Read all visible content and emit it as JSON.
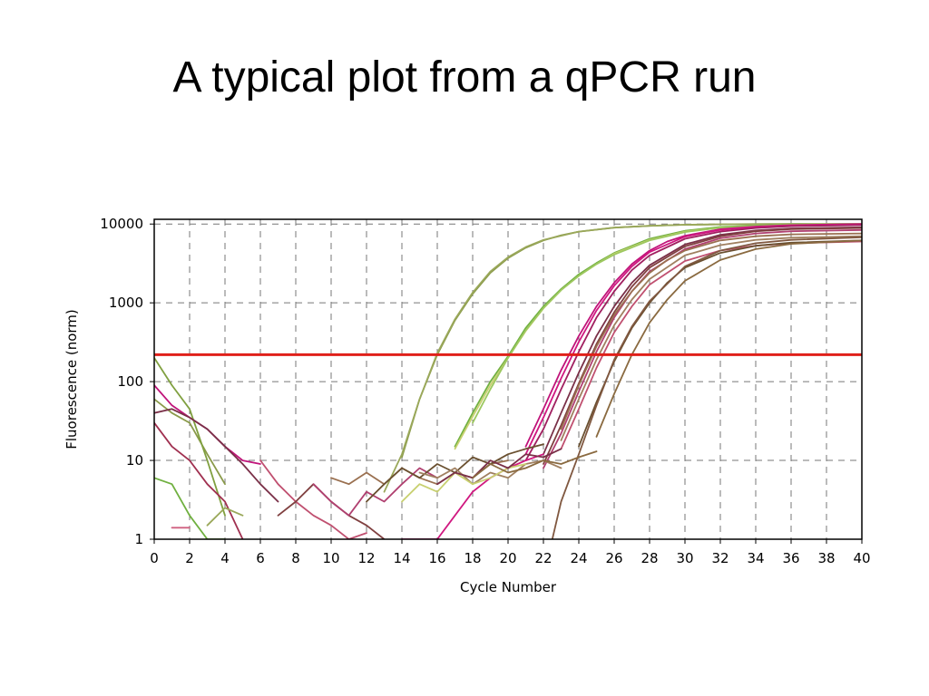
{
  "slide": {
    "title": "A typical plot from a qPCR run"
  },
  "chart_data": {
    "type": "line",
    "xlabel": "Cycle Number",
    "ylabel": "Fluorescence (norm)",
    "xlim": [
      0,
      40
    ],
    "ylim": [
      1,
      10000
    ],
    "y_scale": "log",
    "grid": true,
    "grid_style": "dashed",
    "x_ticks": [
      "0",
      "2",
      "4",
      "6",
      "8",
      "10",
      "12",
      "14",
      "16",
      "18",
      "20",
      "22",
      "24",
      "26",
      "28",
      "30",
      "32",
      "34",
      "36",
      "38",
      "40"
    ],
    "y_ticks": [
      "1",
      "10",
      "100",
      "1000",
      "10000"
    ],
    "threshold": 220,
    "threshold_color": "#e0201a",
    "series": [
      {
        "color": "#8a9a4a",
        "x": [
          14,
          15,
          16,
          17,
          18,
          19,
          20,
          21,
          22,
          23,
          24,
          26,
          28,
          30,
          32,
          36,
          40
        ],
        "y": [
          11,
          60,
          220,
          600,
          1300,
          2400,
          3700,
          5000,
          6200,
          7200,
          8000,
          9000,
          9500,
          9800,
          9900,
          10000,
          10000
        ]
      },
      {
        "color": "#9aa85a",
        "x": [
          13,
          14,
          15,
          16,
          17,
          18,
          19,
          20,
          21,
          22,
          24,
          26,
          28,
          30,
          34,
          40
        ],
        "y": [
          4,
          12,
          60,
          230,
          620,
          1350,
          2500,
          3800,
          5100,
          6300,
          8000,
          9000,
          9500,
          9800,
          10000,
          10000
        ]
      },
      {
        "color": "#70b040",
        "x": [
          17,
          18,
          19,
          20,
          21,
          22,
          23,
          24,
          25,
          26,
          28,
          30,
          32,
          36,
          40
        ],
        "y": [
          15,
          40,
          100,
          210,
          480,
          900,
          1500,
          2300,
          3200,
          4300,
          6500,
          8200,
          9200,
          9900,
          10000
        ]
      },
      {
        "color": "#c8d070",
        "x": [
          17,
          18,
          19,
          20,
          21,
          22,
          23,
          24,
          25,
          26,
          28,
          30,
          32,
          36,
          40
        ],
        "y": [
          14,
          36,
          90,
          200,
          440,
          850,
          1450,
          2200,
          3100,
          4200,
          6300,
          8000,
          9000,
          9800,
          10000
        ]
      },
      {
        "color": "#9cc860",
        "x": [
          18,
          19,
          20,
          21,
          22,
          23,
          24,
          25,
          26,
          28,
          30,
          32,
          36,
          40
        ],
        "y": [
          30,
          80,
          200,
          450,
          860,
          1450,
          2200,
          3100,
          4100,
          6200,
          7900,
          9000,
          9800,
          10000
        ]
      },
      {
        "color": "#c0147a",
        "x": [
          21,
          22,
          23,
          24,
          25,
          26,
          27,
          28,
          29,
          30,
          32,
          34,
          36,
          40
        ],
        "y": [
          15,
          45,
          140,
          380,
          900,
          1800,
          3100,
          4600,
          6000,
          7100,
          8600,
          9300,
          9700,
          10000
        ]
      },
      {
        "color": "#d01880",
        "x": [
          21,
          22,
          23,
          24,
          25,
          26,
          27,
          28,
          30,
          32,
          34,
          36,
          40
        ],
        "y": [
          12,
          35,
          110,
          320,
          800,
          1650,
          2900,
          4400,
          6900,
          8400,
          9200,
          9600,
          9900
        ]
      },
      {
        "color": "#a02060",
        "x": [
          21,
          22,
          23,
          24,
          25,
          26,
          27,
          28,
          30,
          32,
          34,
          36,
          40
        ],
        "y": [
          10,
          25,
          80,
          240,
          650,
          1400,
          2600,
          4000,
          6500,
          8000,
          8900,
          9400,
          9700
        ]
      },
      {
        "color": "#7a3048",
        "x": [
          22,
          23,
          24,
          25,
          26,
          27,
          28,
          30,
          32,
          34,
          36,
          40
        ],
        "y": [
          12,
          40,
          130,
          380,
          900,
          1800,
          3000,
          5500,
          7300,
          8300,
          8800,
          9100
        ]
      },
      {
        "color": "#804040",
        "x": [
          22,
          23,
          24,
          25,
          26,
          27,
          28,
          30,
          32,
          34,
          36,
          40
        ],
        "y": [
          9,
          28,
          95,
          300,
          760,
          1600,
          2800,
          5200,
          7000,
          8100,
          8600,
          8900
        ]
      },
      {
        "color": "#b04070",
        "x": [
          22,
          23,
          24,
          25,
          26,
          27,
          28,
          30,
          32,
          34,
          36,
          40
        ],
        "y": [
          8,
          22,
          75,
          240,
          650,
          1400,
          2500,
          4800,
          6600,
          7600,
          8100,
          8400
        ]
      },
      {
        "color": "#9a7050",
        "x": [
          23,
          24,
          25,
          26,
          27,
          28,
          29,
          30,
          32,
          34,
          36,
          40
        ],
        "y": [
          25,
          90,
          280,
          700,
          1400,
          2400,
          3500,
          4600,
          6200,
          7000,
          7400,
          7600
        ]
      },
      {
        "color": "#a08060",
        "x": [
          23,
          24,
          25,
          26,
          27,
          28,
          30,
          32,
          34,
          36,
          40
        ],
        "y": [
          18,
          60,
          190,
          520,
          1100,
          2000,
          4000,
          5400,
          6300,
          6700,
          7000
        ]
      },
      {
        "color": "#c05070",
        "x": [
          23,
          24,
          25,
          26,
          27,
          28,
          30,
          32,
          34,
          36,
          40
        ],
        "y": [
          14,
          45,
          150,
          420,
          900,
          1700,
          3400,
          4600,
          5300,
          5700,
          6000
        ]
      },
      {
        "color": "#6a5030",
        "x": [
          24,
          25,
          26,
          27,
          28,
          29,
          30,
          32,
          34,
          36,
          40
        ],
        "y": [
          15,
          55,
          180,
          480,
          1000,
          1800,
          2800,
          4300,
          5300,
          5800,
          6200
        ]
      },
      {
        "color": "#8a6a40",
        "x": [
          25,
          26,
          27,
          28,
          29,
          30,
          32,
          34,
          36,
          40
        ],
        "y": [
          20,
          70,
          220,
          560,
          1100,
          1900,
          3500,
          4800,
          5600,
          6200
        ]
      },
      {
        "color": "#805840",
        "x": [
          22.5,
          23,
          24,
          25,
          26,
          27,
          28,
          30,
          32,
          34,
          36,
          40
        ],
        "y": [
          1,
          3,
          12,
          50,
          190,
          500,
          1050,
          2900,
          4600,
          5700,
          6300,
          6800
        ]
      },
      {
        "color": "#8a9a4a",
        "x": [
          0,
          1,
          2,
          3,
          4
        ],
        "y": [
          60,
          40,
          30,
          12,
          5
        ]
      },
      {
        "color": "#c0147a",
        "x": [
          0,
          1,
          2,
          3,
          4,
          5,
          6
        ],
        "y": [
          90,
          50,
          35,
          25,
          15,
          10,
          9
        ]
      },
      {
        "color": "#80a040",
        "x": [
          0,
          1,
          2,
          3,
          4
        ],
        "y": [
          200,
          90,
          45,
          10,
          2
        ]
      },
      {
        "color": "#a03050",
        "x": [
          0,
          1,
          2,
          3,
          4,
          5
        ],
        "y": [
          30,
          15,
          10,
          5,
          3,
          1
        ]
      },
      {
        "color": "#70b040",
        "x": [
          0,
          1,
          2,
          3,
          4
        ],
        "y": [
          6,
          5,
          2,
          1,
          1
        ]
      },
      {
        "color": "#7a3048",
        "x": [
          0,
          1,
          2,
          3,
          4,
          5,
          6,
          7
        ],
        "y": [
          40,
          45,
          35,
          25,
          15,
          9,
          5,
          3
        ]
      },
      {
        "color": "#d06080",
        "x": [
          1,
          2
        ],
        "y": [
          1.4,
          1.4
        ]
      },
      {
        "color": "#9aa85a",
        "x": [
          3,
          4,
          5
        ],
        "y": [
          1.5,
          2.5,
          2
        ]
      },
      {
        "color": "#c05070",
        "x": [
          6,
          7,
          8,
          9,
          10,
          11,
          12
        ],
        "y": [
          10,
          5,
          3,
          2,
          1.5,
          1,
          1.2
        ]
      },
      {
        "color": "#804040",
        "x": [
          7,
          8,
          9,
          10,
          11,
          12,
          13
        ],
        "y": [
          2,
          3,
          5,
          3,
          2,
          1.5,
          1
        ]
      },
      {
        "color": "#b04070",
        "x": [
          9,
          10,
          11,
          12,
          13,
          14,
          15,
          16
        ],
        "y": [
          5,
          3,
          2,
          4,
          3,
          5,
          8,
          6
        ]
      },
      {
        "color": "#9a7050",
        "x": [
          10,
          11,
          12,
          13,
          14,
          15,
          16,
          17,
          18,
          19,
          20
        ],
        "y": [
          6,
          5,
          7,
          5,
          8,
          6,
          5,
          7,
          6,
          9,
          10
        ]
      },
      {
        "color": "#6a5030",
        "x": [
          12,
          13,
          14,
          15,
          16,
          17,
          18,
          19,
          20,
          21,
          22
        ],
        "y": [
          3,
          5,
          8,
          6,
          9,
          7,
          11,
          9,
          12,
          14,
          16
        ]
      },
      {
        "color": "#d01880",
        "x": [
          14,
          15,
          16,
          17,
          18,
          19,
          20,
          21,
          22
        ],
        "y": [
          1,
          1,
          1,
          2,
          4,
          6,
          8,
          10,
          12
        ]
      },
      {
        "color": "#a08060",
        "x": [
          15,
          16,
          17,
          18,
          19,
          20,
          21,
          22,
          23
        ],
        "y": [
          7,
          6,
          8,
          5,
          7,
          6,
          9,
          10,
          8
        ]
      },
      {
        "color": "#c8d070",
        "x": [
          14,
          15,
          16,
          17,
          18,
          19,
          20,
          21
        ],
        "y": [
          3,
          5,
          4,
          7,
          5,
          6,
          8,
          9
        ]
      },
      {
        "color": "#7a3048",
        "x": [
          16,
          17,
          18,
          19,
          20,
          21,
          22,
          23
        ],
        "y": [
          5,
          7,
          6,
          10,
          8,
          12,
          11,
          14
        ]
      },
      {
        "color": "#8a6a40",
        "x": [
          18,
          19,
          20,
          21,
          22,
          23,
          24,
          25
        ],
        "y": [
          6,
          9,
          7,
          8,
          10,
          9,
          11,
          13
        ]
      }
    ]
  }
}
